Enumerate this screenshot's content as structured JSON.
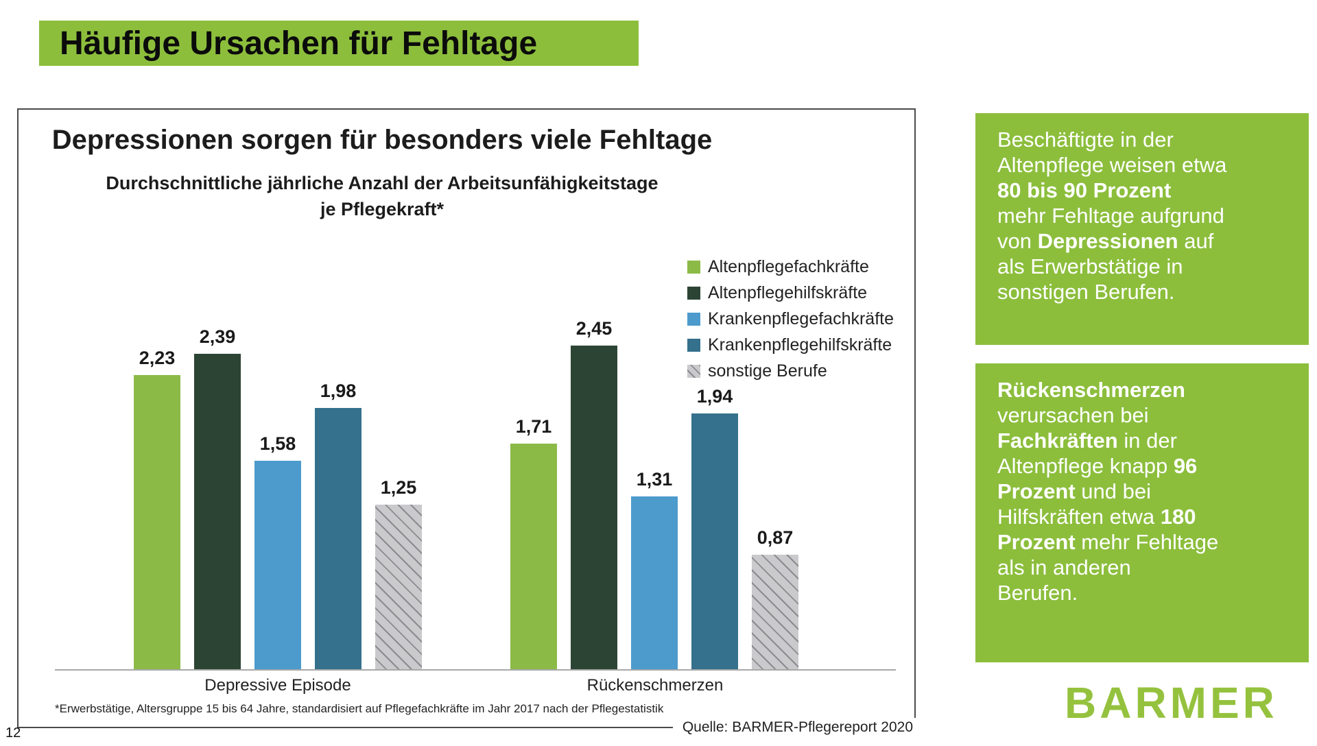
{
  "page": {
    "banner_title": "Häufige Ursachen für Fehltage",
    "page_number": "12",
    "logo_text": "BARMER",
    "colors": {
      "accent_green": "#8CBE3C",
      "logo_green": "#95C23E"
    }
  },
  "chart": {
    "title": "Depressionen sorgen für besonders viele Fehltage",
    "subtitle_line1": "Durchschnittliche jährliche Anzahl der Arbeitsunfähigkeitstage",
    "subtitle_line2": "je Pflegekraft*",
    "footnote": "*Erwerbstätige, Altersgruppe 15 bis 64 Jahre, standardisiert auf Pflegefachkräfte im Jahr 2017 nach der Pflegestatistik",
    "source": "Quelle: BARMER-Pflegereport 2020"
  },
  "chart_data": {
    "type": "bar",
    "categories": [
      "Depressive Episode",
      "Rückenschmerzen"
    ],
    "series": [
      {
        "name": "Altenpflegefachkräfte",
        "color": "#8CBA47",
        "pattern": "solid",
        "values": [
          2.23,
          1.71
        ],
        "labels": [
          "2,23",
          "1,71"
        ]
      },
      {
        "name": "Altenpflegehilfskräfte",
        "color": "#2C4434",
        "pattern": "solid",
        "values": [
          2.39,
          2.45
        ],
        "labels": [
          "2,39",
          "2,45"
        ]
      },
      {
        "name": "Krankenpflegefachkräfte",
        "color": "#4C9BCC",
        "pattern": "solid",
        "values": [
          1.58,
          1.31
        ],
        "labels": [
          "1,58",
          "1,31"
        ]
      },
      {
        "name": "Krankenpflegehilfskräfte",
        "color": "#35708C",
        "pattern": "solid",
        "values": [
          1.98,
          1.94
        ],
        "labels": [
          "1,98",
          "1,94"
        ]
      },
      {
        "name": "sonstige Berufe",
        "color": "#CACACD",
        "pattern": "diagonal-hatch",
        "hatch_color": "#8B8B8F",
        "values": [
          1.25,
          0.87
        ],
        "labels": [
          "1,25",
          "0,87"
        ]
      }
    ],
    "ylim": [
      0,
      2.8
    ],
    "grid": false,
    "legend_position": "top-right",
    "value_labels_shown": true,
    "decimal_separator": ","
  },
  "sidebar": {
    "box1_lines": [
      [
        {
          "t": "Beschäftigte in der",
          "b": false
        }
      ],
      [
        {
          "t": "Altenpflege weisen etwa",
          "b": false
        }
      ],
      [
        {
          "t": "80 bis 90 Prozent",
          "b": true
        }
      ],
      [
        {
          "t": "mehr Fehltage aufgrund",
          "b": false
        }
      ],
      [
        {
          "t": "von ",
          "b": false
        },
        {
          "t": "Depressionen",
          "b": true
        },
        {
          "t": " auf",
          "b": false
        }
      ],
      [
        {
          "t": "als Erwerbstätige in",
          "b": false
        }
      ],
      [
        {
          "t": "sonstigen Berufen.",
          "b": false
        }
      ]
    ],
    "box2_lines": [
      [
        {
          "t": "Rückenschmerzen",
          "b": true
        }
      ],
      [
        {
          "t": "verursachen bei",
          "b": false
        }
      ],
      [
        {
          "t": "Fachkräften",
          "b": true
        },
        {
          "t": " in der",
          "b": false
        }
      ],
      [
        {
          "t": "Altenpflege knapp ",
          "b": false
        },
        {
          "t": "96",
          "b": true
        }
      ],
      [
        {
          "t": "Prozent",
          "b": true
        },
        {
          "t": " und bei",
          "b": false
        }
      ],
      [
        {
          "t": "Hilfskräften etwa ",
          "b": false
        },
        {
          "t": "180",
          "b": true
        }
      ],
      [
        {
          "t": "Prozent",
          "b": true
        },
        {
          "t": " mehr Fehltage",
          "b": false
        }
      ],
      [
        {
          "t": "als in anderen",
          "b": false
        }
      ],
      [
        {
          "t": "Berufen.",
          "b": false
        }
      ]
    ]
  }
}
